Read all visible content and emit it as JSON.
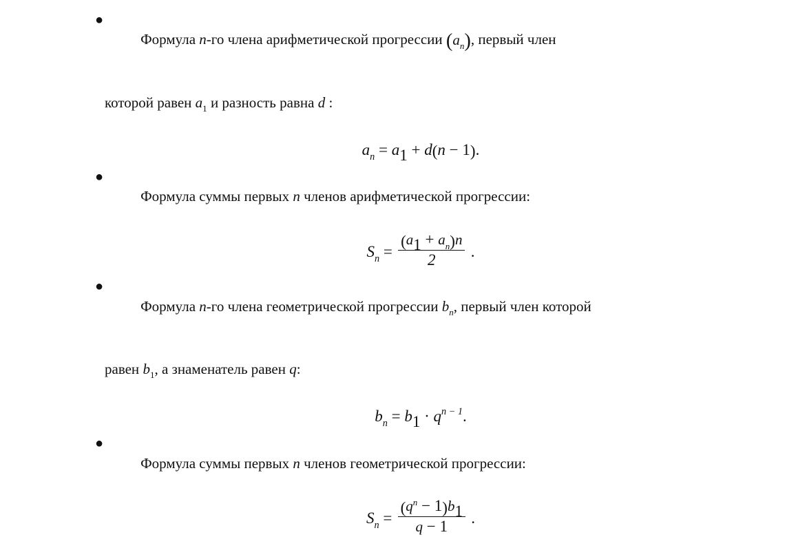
{
  "colors": {
    "text": "#111111",
    "background": "#ffffff"
  },
  "typography": {
    "font_family": "Times New Roman",
    "base_pt": 21,
    "formula_pt": 23
  },
  "blocks": [
    {
      "bullet_pre": "Формула ",
      "bullet_var_n": "n",
      "bullet_mid1": "-го члена арифметической прогрессии ",
      "bullet_paren_open": "(",
      "bullet_paren_a": "a",
      "bullet_paren_sub": "n",
      "bullet_paren_close": ")",
      "bullet_tail": ", первый член",
      "cont_pre": "которой равен ",
      "cont_a1_a": "a",
      "cont_a1_sub": "1",
      "cont_mid": " и разность равна ",
      "cont_d": "d ",
      "cont_colon": ":",
      "formula": {
        "lhs_a": "a",
        "lhs_sub": "n",
        "eq": " = ",
        "a1_a": "a",
        "a1_sub": "1",
        "plus": " + ",
        "d": "d",
        "po": "(",
        "n": "n",
        "minus": " − ",
        "one": "1",
        "pc": ")",
        "period": "."
      }
    },
    {
      "bullet_pre": "Формула суммы первых ",
      "bullet_var_n": "n",
      "bullet_tail": " членов арифметической прогрессии:",
      "formula": {
        "lhs_S": "S",
        "lhs_sub": "n",
        "eq": " = ",
        "num_po": "(",
        "num_a1a": "a",
        "num_a1s": "1",
        "num_plus": " + ",
        "num_ana": "a",
        "num_ans": "n",
        "num_pc": ")",
        "num_n": "n",
        "den": "2",
        "period": "."
      }
    },
    {
      "bullet_pre": "Формула ",
      "bullet_var_n": "n",
      "bullet_mid1": "-го члена геометрической прогрессии ",
      "bullet_b": "b",
      "bullet_b_sub": "n",
      "bullet_tail": ", первый член которой",
      "cont_pre": "равен ",
      "cont_b1_b": "b",
      "cont_b1_sub": "1",
      "cont_mid": ", а знаменатель равен ",
      "cont_q": "q",
      "cont_colon": ":",
      "formula": {
        "lhs_b": "b",
        "lhs_sub": "n",
        "eq": " = ",
        "b1_b": "b",
        "b1_sub": "1",
        "cdot": " · ",
        "q": "q",
        "exp_pre": "n − 1",
        "period": "."
      }
    },
    {
      "bullet_pre": "Формула суммы первых ",
      "bullet_var_n": "n",
      "bullet_tail": " членов геометрической прогрессии:",
      "formula": {
        "lhs_S": "S",
        "lhs_sub": "n",
        "eq": " = ",
        "num_po": "(",
        "num_q": "q",
        "num_exp": "n",
        "num_minus": " − ",
        "num_one": "1",
        "num_pc": ")",
        "num_b": "b",
        "num_bs": "1",
        "den_q": "q",
        "den_minus": " − ",
        "den_one": "1",
        "period": "."
      }
    }
  ]
}
